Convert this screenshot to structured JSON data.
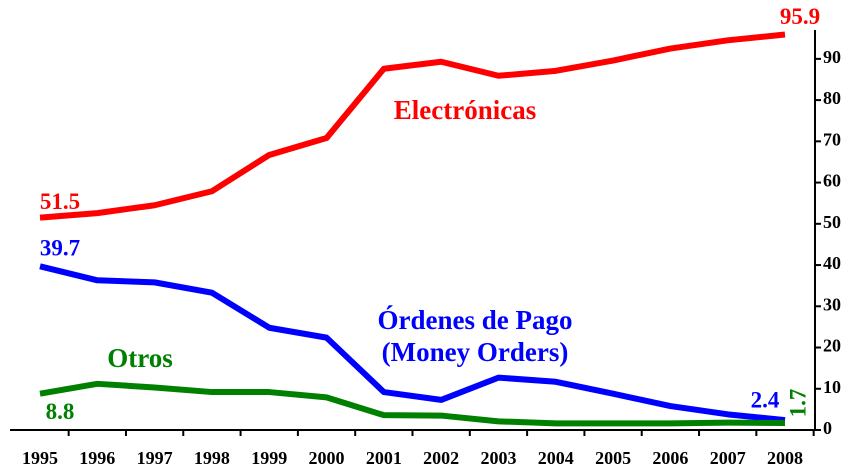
{
  "chart_data": {
    "type": "line",
    "categories": [
      "1995",
      "1996",
      "1997",
      "1998",
      "1999",
      "2000",
      "2001",
      "2002",
      "2003",
      "2004",
      "2005",
      "2006",
      "2007",
      "2008"
    ],
    "series": [
      {
        "name": "Electrónicas",
        "color": "#ff0000",
        "values": [
          51.5,
          52.6,
          54.5,
          57.9,
          66.7,
          70.8,
          87.6,
          89.3,
          85.9,
          87.1,
          89.6,
          92.5,
          94.5,
          95.9
        ],
        "value_labels": [
          "51.5",
          null,
          null,
          null,
          null,
          null,
          null,
          null,
          null,
          null,
          null,
          null,
          null,
          "95.9"
        ]
      },
      {
        "name": "Órdenes de Pago (Money Orders)",
        "color": "#0000ff",
        "values": [
          39.7,
          36.3,
          35.8,
          33.3,
          24.8,
          22.4,
          9.2,
          7.3,
          12.7,
          11.7,
          8.8,
          5.8,
          3.8,
          2.4
        ],
        "value_labels": [
          "39.7",
          null,
          null,
          null,
          null,
          null,
          null,
          null,
          null,
          null,
          null,
          null,
          null,
          "2.4"
        ]
      },
      {
        "name": "Otros",
        "color": "#008000",
        "values": [
          8.8,
          11.2,
          10.3,
          9.2,
          9.2,
          7.9,
          3.6,
          3.5,
          2.1,
          1.6,
          1.6,
          1.6,
          1.8,
          1.7
        ],
        "value_labels": [
          "8.8",
          null,
          null,
          null,
          null,
          null,
          null,
          null,
          null,
          null,
          null,
          null,
          null,
          "1.7"
        ]
      }
    ],
    "ylim": [
      0,
      97
    ],
    "yticks": [
      0,
      10,
      20,
      30,
      40,
      50,
      60,
      70,
      80,
      90
    ],
    "y_axis_side": "right"
  }
}
